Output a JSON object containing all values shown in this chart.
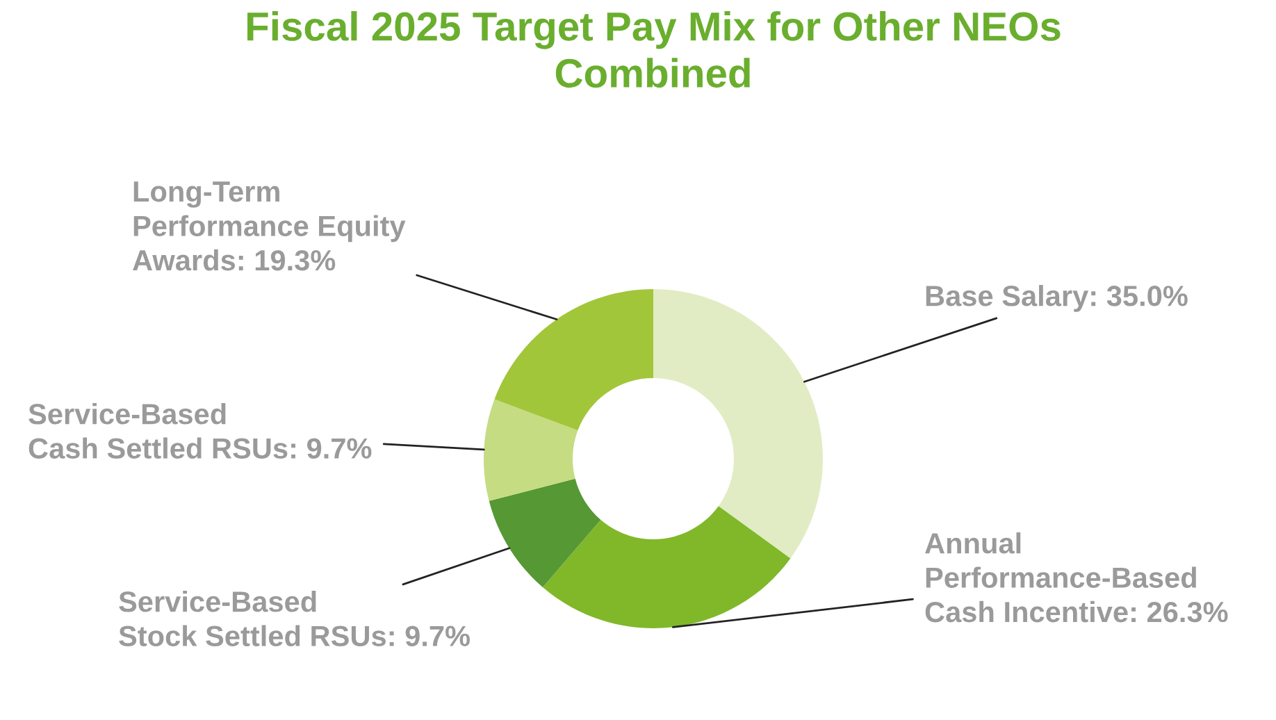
{
  "chart_data": {
    "type": "donut",
    "title": "Fiscal 2025 Target Pay Mix for Other NEOs Combined",
    "categories": [
      "Base Salary",
      "Annual Performance-Based Cash Incentive",
      "Service-Based Stock Settled RSUs",
      "Service-Based Cash Settled RSUs",
      "Long-Term Performance Equity Awards"
    ],
    "values": [
      35.0,
      26.3,
      9.7,
      9.7,
      19.3
    ],
    "value_labels": [
      "35.0%",
      "26.3%",
      "9.7%",
      "9.7%",
      "19.3%"
    ],
    "colors": [
      "#e2ecc4",
      "#80b82a",
      "#559834",
      "#c5dc82",
      "#a2c63a"
    ]
  }
}
